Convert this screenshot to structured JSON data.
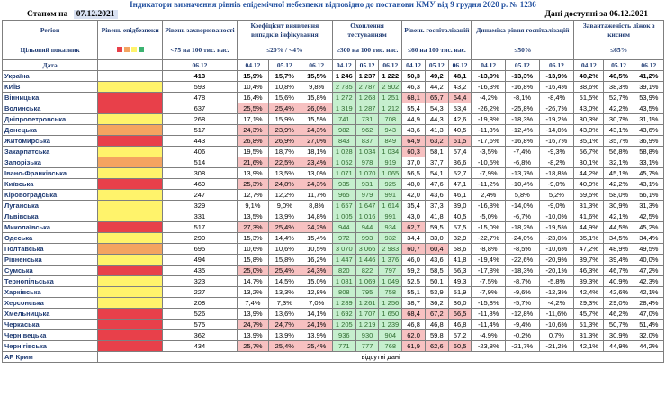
{
  "title": "Індикатори визначення рівнів епідемічної небезпеки відповідно до постанови КМУ від 9 грудня 2020 р. № 1236",
  "status_label": "Станом на",
  "status_date": "07.12.2021",
  "data_available": "Дані доступні за 06.12.2021",
  "headers": {
    "region": "Регіон",
    "target": "Цільовий показник",
    "date": "Дата",
    "level": "Рівень епідбезпеки",
    "incidence": "Рівень захворюваності",
    "incidence_target": "<75 на 100 тис. нас.",
    "detection": "Коефіцієнт виявлення випадків інфікування",
    "detection_target": "≤20% / <4%",
    "testing": "Охоплення тестуванням",
    "testing_target": "≥300 на 100 тис. нас.",
    "hosp": "Рівень госпіталізацій",
    "hosp_target": "≤60 на 100 тис. нас.",
    "hosp_dyn": "Динаміка рівня госпіталізацій",
    "hosp_dyn_target": "≤50%",
    "oxygen": "Завантаженість ліжок з киснем",
    "oxygen_target": "≤65%",
    "dates3": [
      "04.12",
      "05.12",
      "06.12"
    ],
    "date1": "06.12"
  },
  "legend_colors": [
    "#e8404a",
    "#f4a460",
    "#fff36b",
    "#3cb371"
  ],
  "rows": [
    {
      "name": "Україна",
      "level": "",
      "inc": "413",
      "det": [
        "15,9%",
        "15,7%",
        "15,5%"
      ],
      "test": [
        "1 246",
        "1 237",
        "1 222"
      ],
      "hosp": [
        "50,3",
        "49,2",
        "48,1"
      ],
      "dyn": [
        "-13,0%",
        "-13,3%",
        "-13,9%"
      ],
      "oxy": [
        "40,2%",
        "40,5%",
        "41,2%"
      ]
    },
    {
      "name": "КИЇВ",
      "level": "yel",
      "inc": "593",
      "det": [
        "10,4%",
        "10,8%",
        "9,8%"
      ],
      "test": [
        "2 785",
        "2 787",
        "2 902"
      ],
      "hosp": [
        "46,3",
        "44,2",
        "43,2"
      ],
      "dyn": [
        "-16,3%",
        "-16,8%",
        "-16,4%"
      ],
      "oxy": [
        "38,6%",
        "38,3%",
        "39,1%"
      ]
    },
    {
      "name": "Вінницька",
      "level": "red",
      "inc": "478",
      "det": [
        "16,4%",
        "15,6%",
        "15,8%"
      ],
      "test": [
        "1 272",
        "1 268",
        "1 251"
      ],
      "hosp": [
        "68,1",
        "65,7",
        "64,4"
      ],
      "dyn": [
        "-4,2%",
        "-8,1%",
        "-8,4%"
      ],
      "oxy": [
        "51,5%",
        "52,7%",
        "53,9%"
      ]
    },
    {
      "name": "Волинська",
      "level": "red",
      "inc": "637",
      "det": [
        "25,5%",
        "25,4%",
        "26,0%"
      ],
      "test": [
        "1 319",
        "1 287",
        "1 212"
      ],
      "hosp": [
        "55,4",
        "54,3",
        "53,4"
      ],
      "dyn": [
        "-26,2%",
        "-25,8%",
        "-26,7%"
      ],
      "oxy": [
        "43,0%",
        "42,2%",
        "43,5%"
      ]
    },
    {
      "name": "Дніпропетровська",
      "level": "yel",
      "inc": "268",
      "det": [
        "17,1%",
        "15,9%",
        "15,5%"
      ],
      "test": [
        "741",
        "731",
        "708"
      ],
      "hosp": [
        "44,9",
        "44,3",
        "42,6"
      ],
      "dyn": [
        "-19,8%",
        "-18,3%",
        "-19,2%"
      ],
      "oxy": [
        "30,3%",
        "30,7%",
        "31,1%"
      ]
    },
    {
      "name": "Донецька",
      "level": "org",
      "inc": "517",
      "det": [
        "24,3%",
        "23,9%",
        "24,3%"
      ],
      "test": [
        "982",
        "962",
        "943"
      ],
      "hosp": [
        "43,6",
        "41,3",
        "40,5"
      ],
      "dyn": [
        "-11,3%",
        "-12,4%",
        "-14,0%"
      ],
      "oxy": [
        "43,0%",
        "43,1%",
        "43,6%"
      ]
    },
    {
      "name": "Житомирська",
      "level": "red",
      "inc": "443",
      "det": [
        "26,8%",
        "26,9%",
        "27,0%"
      ],
      "test": [
        "843",
        "837",
        "849"
      ],
      "hosp": [
        "64,9",
        "63,2",
        "61,5"
      ],
      "dyn": [
        "-17,6%",
        "-16,8%",
        "-16,7%"
      ],
      "oxy": [
        "35,1%",
        "35,7%",
        "36,9%"
      ]
    },
    {
      "name": "Закарпатська",
      "level": "yel",
      "inc": "406",
      "det": [
        "19,5%",
        "18,7%",
        "18,1%"
      ],
      "test": [
        "1 028",
        "1 034",
        "1 034"
      ],
      "hosp": [
        "60,3",
        "58,1",
        "57,4"
      ],
      "dyn": [
        "-3,5%",
        "-7,4%",
        "-9,3%"
      ],
      "oxy": [
        "56,7%",
        "56,8%",
        "58,8%"
      ]
    },
    {
      "name": "Запорізька",
      "level": "org",
      "inc": "514",
      "det": [
        "21,6%",
        "22,5%",
        "23,4%"
      ],
      "test": [
        "1 052",
        "978",
        "919"
      ],
      "hosp": [
        "37,0",
        "37,7",
        "36,6"
      ],
      "dyn": [
        "-10,5%",
        "-6,8%",
        "-8,2%"
      ],
      "oxy": [
        "30,1%",
        "32,1%",
        "33,1%"
      ]
    },
    {
      "name": "Івано-Франківська",
      "level": "yel",
      "inc": "308",
      "det": [
        "13,9%",
        "13,5%",
        "13,0%"
      ],
      "test": [
        "1 071",
        "1 070",
        "1 065"
      ],
      "hosp": [
        "56,5",
        "54,1",
        "52,7"
      ],
      "dyn": [
        "-7,9%",
        "-13,7%",
        "-18,8%"
      ],
      "oxy": [
        "44,2%",
        "45,1%",
        "45,7%"
      ]
    },
    {
      "name": "Київська",
      "level": "red",
      "inc": "469",
      "det": [
        "25,3%",
        "24,8%",
        "24,3%"
      ],
      "test": [
        "935",
        "931",
        "925"
      ],
      "hosp": [
        "48,0",
        "47,6",
        "47,1"
      ],
      "dyn": [
        "-11,2%",
        "-10,4%",
        "-9,0%"
      ],
      "oxy": [
        "40,9%",
        "42,2%",
        "43,1%"
      ]
    },
    {
      "name": "Кіровоградська",
      "level": "yel",
      "inc": "247",
      "det": [
        "12,7%",
        "12,2%",
        "11,7%"
      ],
      "test": [
        "965",
        "979",
        "991"
      ],
      "hosp": [
        "42,0",
        "43,6",
        "46,1"
      ],
      "dyn": [
        "2,4%",
        "5,8%",
        "5,2%"
      ],
      "oxy": [
        "59,5%",
        "58,0%",
        "56,1%"
      ]
    },
    {
      "name": "Луганська",
      "level": "yel",
      "inc": "329",
      "det": [
        "9,1%",
        "9,0%",
        "8,8%"
      ],
      "test": [
        "1 657",
        "1 647",
        "1 614"
      ],
      "hosp": [
        "35,4",
        "37,3",
        "39,0"
      ],
      "dyn": [
        "-16,8%",
        "-14,0%",
        "-9,0%"
      ],
      "oxy": [
        "31,3%",
        "30,9%",
        "31,3%"
      ]
    },
    {
      "name": "Львівська",
      "level": "yel",
      "inc": "331",
      "det": [
        "13,5%",
        "13,9%",
        "14,8%"
      ],
      "test": [
        "1 005",
        "1 016",
        "991"
      ],
      "hosp": [
        "43,0",
        "41,8",
        "40,5"
      ],
      "dyn": [
        "-5,0%",
        "-6,7%",
        "-10,0%"
      ],
      "oxy": [
        "41,6%",
        "42,1%",
        "42,5%"
      ]
    },
    {
      "name": "Миколаївська",
      "level": "red",
      "inc": "517",
      "det": [
        "27,3%",
        "25,4%",
        "24,2%"
      ],
      "test": [
        "944",
        "944",
        "934"
      ],
      "hosp": [
        "62,7",
        "59,5",
        "57,5"
      ],
      "dyn": [
        "-15,0%",
        "-18,2%",
        "-19,5%"
      ],
      "oxy": [
        "44,9%",
        "44,5%",
        "45,2%"
      ]
    },
    {
      "name": "Одеська",
      "level": "yel",
      "inc": "290",
      "det": [
        "15,3%",
        "14,4%",
        "15,4%"
      ],
      "test": [
        "972",
        "993",
        "932"
      ],
      "hosp": [
        "34,4",
        "33,0",
        "32,9"
      ],
      "dyn": [
        "-22,7%",
        "-24,0%",
        "-23,0%"
      ],
      "oxy": [
        "35,1%",
        "34,5%",
        "34,4%"
      ]
    },
    {
      "name": "Полтавська",
      "level": "org",
      "inc": "695",
      "det": [
        "10,6%",
        "10,6%",
        "10,5%"
      ],
      "test": [
        "3 070",
        "3 066",
        "2 983"
      ],
      "hosp": [
        "60,7",
        "60,4",
        "58,6"
      ],
      "dyn": [
        "-8,8%",
        "-8,5%",
        "-10,6%"
      ],
      "oxy": [
        "47,2%",
        "48,9%",
        "49,5%"
      ]
    },
    {
      "name": "Рівненська",
      "level": "yel",
      "inc": "494",
      "det": [
        "15,8%",
        "15,8%",
        "16,2%"
      ],
      "test": [
        "1 447",
        "1 446",
        "1 376"
      ],
      "hosp": [
        "46,0",
        "43,6",
        "41,8"
      ],
      "dyn": [
        "-19,4%",
        "-22,6%",
        "-20,9%"
      ],
      "oxy": [
        "39,7%",
        "39,4%",
        "40,0%"
      ]
    },
    {
      "name": "Сумська",
      "level": "red",
      "inc": "435",
      "det": [
        "25,0%",
        "25,4%",
        "24,3%"
      ],
      "test": [
        "820",
        "822",
        "797"
      ],
      "hosp": [
        "59,2",
        "58,5",
        "56,3"
      ],
      "dyn": [
        "-17,8%",
        "-18,3%",
        "-20,1%"
      ],
      "oxy": [
        "46,3%",
        "46,7%",
        "47,2%"
      ]
    },
    {
      "name": "Тернопільська",
      "level": "yel",
      "inc": "323",
      "det": [
        "14,7%",
        "14,5%",
        "15,0%"
      ],
      "test": [
        "1 081",
        "1 069",
        "1 049"
      ],
      "hosp": [
        "52,5",
        "50,1",
        "49,3"
      ],
      "dyn": [
        "-7,5%",
        "-8,7%",
        "-5,8%"
      ],
      "oxy": [
        "39,3%",
        "40,9%",
        "42,3%"
      ]
    },
    {
      "name": "Харківська",
      "level": "yel",
      "inc": "227",
      "det": [
        "13,2%",
        "13,3%",
        "12,8%"
      ],
      "test": [
        "808",
        "795",
        "758"
      ],
      "hosp": [
        "55,1",
        "53,9",
        "51,9"
      ],
      "dyn": [
        "-7,9%",
        "-9,6%",
        "-12,3%"
      ],
      "oxy": [
        "42,4%",
        "42,6%",
        "42,1%"
      ]
    },
    {
      "name": "Херсонська",
      "level": "yel",
      "inc": "208",
      "det": [
        "7,4%",
        "7,3%",
        "7,0%"
      ],
      "test": [
        "1 289",
        "1 261",
        "1 256"
      ],
      "hosp": [
        "38,7",
        "36,2",
        "36,0"
      ],
      "dyn": [
        "-15,8%",
        "-5,7%",
        "-4,2%"
      ],
      "oxy": [
        "29,3%",
        "29,0%",
        "28,4%"
      ]
    },
    {
      "name": "Хмельницька",
      "level": "red",
      "inc": "526",
      "det": [
        "13,9%",
        "13,6%",
        "14,1%"
      ],
      "test": [
        "1 692",
        "1 707",
        "1 650"
      ],
      "hosp": [
        "68,4",
        "67,2",
        "66,5"
      ],
      "dyn": [
        "-11,8%",
        "-12,8%",
        "-11,6%"
      ],
      "oxy": [
        "45,7%",
        "46,2%",
        "47,0%"
      ]
    },
    {
      "name": "Черкаська",
      "level": "red",
      "inc": "575",
      "det": [
        "24,7%",
        "24,7%",
        "24,1%"
      ],
      "test": [
        "1 205",
        "1 219",
        "1 239"
      ],
      "hosp": [
        "46,8",
        "46,8",
        "46,8"
      ],
      "dyn": [
        "-11,4%",
        "-9,4%",
        "-10,6%"
      ],
      "oxy": [
        "51,3%",
        "50,7%",
        "51,4%"
      ]
    },
    {
      "name": "Чернівецька",
      "level": "red",
      "inc": "362",
      "det": [
        "13,9%",
        "13,9%",
        "13,9%"
      ],
      "test": [
        "936",
        "930",
        "904"
      ],
      "hosp": [
        "62,0",
        "59,8",
        "57,2"
      ],
      "dyn": [
        "-4,9%",
        "-0,2%",
        "0,7%"
      ],
      "oxy": [
        "31,3%",
        "30,9%",
        "32,0%"
      ]
    },
    {
      "name": "Чернігівська",
      "level": "red",
      "inc": "434",
      "det": [
        "25,7%",
        "25,4%",
        "25,4%"
      ],
      "test": [
        "771",
        "777",
        "768"
      ],
      "hosp": [
        "61,9",
        "62,6",
        "60,5"
      ],
      "dyn": [
        "-23,8%",
        "-21,7%",
        "-21,2%"
      ],
      "oxy": [
        "42,1%",
        "44,9%",
        "44,2%"
      ]
    }
  ],
  "crimea": {
    "name": "АР Крим",
    "note": "відсутні дані"
  }
}
